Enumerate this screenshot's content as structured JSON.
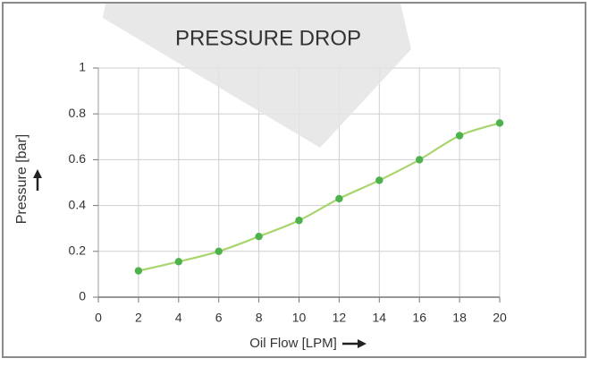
{
  "chart_data": {
    "type": "line",
    "title": "PRESSURE DROP",
    "x_label": "Oil Flow [LPM]",
    "y_label": "Pressure [bar]",
    "x": [
      2,
      4,
      6,
      8,
      10,
      12,
      14,
      16,
      18,
      20
    ],
    "series": [
      {
        "color": "#a8d56e",
        "marker_color": "#4db14c",
        "values": [
          0.115,
          0.155,
          0.2,
          0.265,
          0.335,
          0.43,
          0.51,
          0.6,
          0.705,
          0.76
        ]
      }
    ],
    "xlim": [
      0,
      20
    ],
    "ylim": [
      0,
      1
    ],
    "xticks": [
      0,
      2,
      4,
      6,
      8,
      10,
      12,
      14,
      16,
      18,
      20
    ],
    "yticks": [
      0,
      0.2,
      0.4,
      0.6,
      0.8,
      1
    ],
    "grid": true
  }
}
